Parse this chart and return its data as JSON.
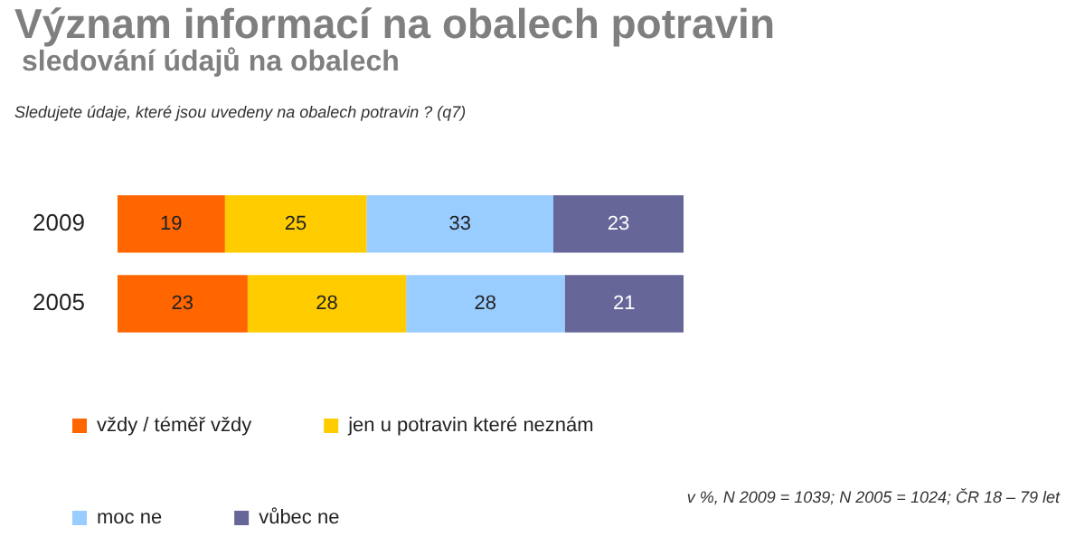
{
  "chart_data": {
    "type": "bar",
    "orientation": "horizontal",
    "stacked": true,
    "title": "Význam informací na obalech potravin",
    "subtitle": "sledování údajů na obalech",
    "annotations": [
      "Sledujete údaje, které jsou uvedeny na obalech potravin ? (q7)",
      "v %,  N 2009 = 1039; N 2005 = 1024; ČR 18 – 79 let"
    ],
    "categories": [
      "2009",
      "2005"
    ],
    "series": [
      {
        "name": "vždy / téměř vždy",
        "color": "#ff6600",
        "values": [
          19,
          23
        ]
      },
      {
        "name": "jen u potravin které neznám",
        "color": "#ffcc00",
        "values": [
          25,
          28
        ]
      },
      {
        "name": "moc ne",
        "color": "#99ccff",
        "values": [
          33,
          28
        ]
      },
      {
        "name": "vůbec ne",
        "color": "#666699",
        "values": [
          23,
          21
        ]
      }
    ],
    "xlim": [
      0,
      100
    ],
    "data_labels": true,
    "legend": "bottom",
    "grid": false,
    "tick_labels": "y"
  }
}
